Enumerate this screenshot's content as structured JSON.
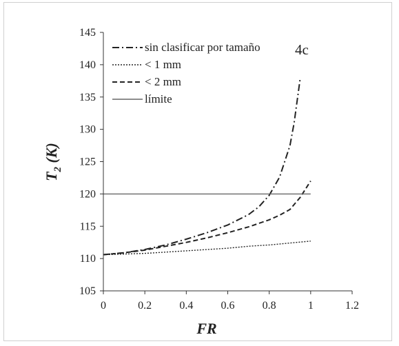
{
  "chart_data": {
    "type": "line",
    "panel_label": "4c",
    "xlabel": "FR",
    "ylabel": {
      "main": "T",
      "subscript": "2",
      "unit": " (K)"
    },
    "xlim": [
      0,
      1.2
    ],
    "ylim": [
      105,
      145
    ],
    "x_ticks": [
      0,
      0.2,
      0.4,
      0.6,
      0.8,
      1,
      1.2
    ],
    "x_tick_labels": [
      "0",
      "0.2",
      "0.4",
      "0.6",
      "0.8",
      "1",
      "1.2"
    ],
    "y_ticks": [
      105,
      110,
      115,
      120,
      125,
      130,
      135,
      140,
      145
    ],
    "y_tick_labels": [
      "105",
      "110",
      "115",
      "120",
      "125",
      "130",
      "135",
      "140",
      "145"
    ],
    "grid": false,
    "legend_position": "top-left",
    "series": [
      {
        "name": "sin clasificar por tamaño",
        "style": "dash-dot",
        "color": "#222222",
        "x": [
          0,
          0.1,
          0.2,
          0.3,
          0.4,
          0.5,
          0.6,
          0.7,
          0.75,
          0.8,
          0.85,
          0.9,
          0.92,
          0.95
        ],
        "y": [
          110.6,
          110.9,
          111.4,
          112.1,
          113.0,
          114.0,
          115.2,
          116.8,
          118.0,
          119.8,
          122.6,
          127.5,
          131.0,
          138.0
        ]
      },
      {
        "name": "< 1 mm",
        "style": "dotted",
        "color": "#222222",
        "x": [
          0,
          0.1,
          0.2,
          0.3,
          0.4,
          0.5,
          0.6,
          0.7,
          0.8,
          0.9,
          1.0
        ],
        "y": [
          110.6,
          110.7,
          110.8,
          111.0,
          111.2,
          111.4,
          111.6,
          111.9,
          112.1,
          112.4,
          112.7
        ]
      },
      {
        "name": "< 2 mm",
        "style": "dashed",
        "color": "#222222",
        "x": [
          0,
          0.1,
          0.2,
          0.3,
          0.4,
          0.5,
          0.6,
          0.7,
          0.8,
          0.85,
          0.9,
          0.95,
          1.0
        ],
        "y": [
          110.6,
          110.9,
          111.3,
          111.9,
          112.5,
          113.2,
          114.0,
          114.9,
          116.0,
          116.7,
          117.6,
          119.5,
          122.0
        ]
      },
      {
        "name": "límite",
        "style": "solid",
        "color": "#666666",
        "x": [
          0,
          1.0
        ],
        "y": [
          120,
          120
        ]
      }
    ]
  }
}
